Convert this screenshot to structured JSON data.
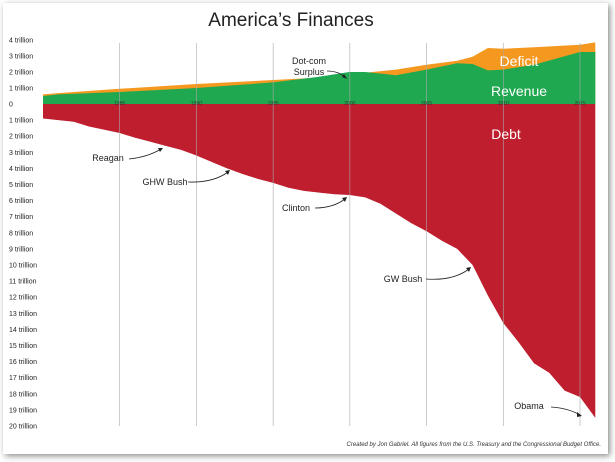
{
  "chart_data": {
    "type": "area",
    "title": "America’s Finances",
    "x": [
      1981,
      1985,
      1990,
      1995,
      2000,
      2001,
      2005,
      2008,
      2009,
      2010,
      2012,
      2015,
      2016
    ],
    "xticks": [
      "1985",
      "1990",
      "1995",
      "2000",
      "2005",
      "2010",
      "2015"
    ],
    "xlim": [
      1980,
      2016.5
    ],
    "ylim": [
      -20,
      4
    ],
    "yticks_upper": [
      "4 trillion",
      "3 trillion",
      "2 trillion",
      "1 trillion",
      "0"
    ],
    "yticks_lower": [
      "1 trillion",
      "2 trillion",
      "3 trillion",
      "4 trillion",
      "5 trillion",
      "6 trillion",
      "7 trillion",
      "8 trillion",
      "9 trillion",
      "10 trillion",
      "11 trillion",
      "12 trillion",
      "13 trillion",
      "14 trillion",
      "15 trillion",
      "16 trillion",
      "17 trillion",
      "18 trillion",
      "19 trillion",
      "20 trillion"
    ],
    "grid": true,
    "series": [
      {
        "name": "Revenue",
        "color": "#1fa84f",
        "x": [
          1980,
          1981,
          1985,
          1990,
          1995,
          1998,
          2000,
          2001,
          2003,
          2005,
          2007,
          2008,
          2009,
          2010,
          2012,
          2015,
          2016
        ],
        "values": [
          0.5,
          0.6,
          0.75,
          1.0,
          1.35,
          1.7,
          2.0,
          2.0,
          1.8,
          2.15,
          2.55,
          2.5,
          2.1,
          2.15,
          2.45,
          3.25,
          3.25
        ]
      },
      {
        "name": "Deficit",
        "color": "#f4981f",
        "x": [
          1980,
          1981,
          1985,
          1990,
          1995,
          1998,
          2000,
          2001,
          2003,
          2005,
          2007,
          2008,
          2009,
          2010,
          2012,
          2015,
          2016
        ],
        "values": [
          0.6,
          0.68,
          0.95,
          1.25,
          1.5,
          1.65,
          1.8,
          1.95,
          2.15,
          2.45,
          2.7,
          2.95,
          3.5,
          3.45,
          3.55,
          3.7,
          3.85
        ]
      },
      {
        "name": "Dot-com Surplus",
        "color": "#29a8e0",
        "x": [
          1998,
          1999,
          2000,
          2001
        ],
        "values": [
          1.7,
          1.85,
          2.0,
          1.95
        ]
      },
      {
        "name": "Debt",
        "color": "#be1e2d",
        "x": [
          1980,
          1981,
          1982,
          1983,
          1984,
          1985,
          1986,
          1987,
          1988,
          1989,
          1990,
          1991,
          1992,
          1993,
          1994,
          1995,
          1996,
          1997,
          1998,
          1999,
          2000,
          2001,
          2002,
          2003,
          2004,
          2005,
          2006,
          2007,
          2008,
          2009,
          2010,
          2011,
          2012,
          2013,
          2014,
          2015,
          2016
        ],
        "values": [
          -0.9,
          -1.0,
          -1.1,
          -1.4,
          -1.6,
          -1.8,
          -2.1,
          -2.35,
          -2.6,
          -2.85,
          -3.2,
          -3.6,
          -4.0,
          -4.35,
          -4.65,
          -4.9,
          -5.2,
          -5.4,
          -5.5,
          -5.6,
          -5.65,
          -5.8,
          -6.2,
          -6.8,
          -7.4,
          -7.9,
          -8.5,
          -9.0,
          -10.0,
          -11.9,
          -13.6,
          -14.8,
          -16.1,
          -16.7,
          -17.8,
          -18.2,
          -19.5
        ]
      }
    ],
    "area_labels": {
      "deficit": "Deficit",
      "revenue": "Revenue",
      "debt": "Debt"
    },
    "annotations": [
      {
        "text": "Dot-com",
        "x": 2000,
        "y": 2
      },
      {
        "text": "Surplus",
        "x": 2000,
        "y": 2
      },
      {
        "text": "Reagan",
        "x": 1988,
        "y": -2.6
      },
      {
        "text": "GHW Bush",
        "x": 1992,
        "y": -4.0
      },
      {
        "text": "Clinton",
        "x": 2000,
        "y": -5.65
      },
      {
        "text": "GW Bush",
        "x": 2008,
        "y": -10.0
      },
      {
        "text": "Obama",
        "x": 2016,
        "y": -19.5
      }
    ],
    "credit": "Created by Jon Gabriel. All figures from the U.S. Treasury and the Congressional Budget Office."
  }
}
